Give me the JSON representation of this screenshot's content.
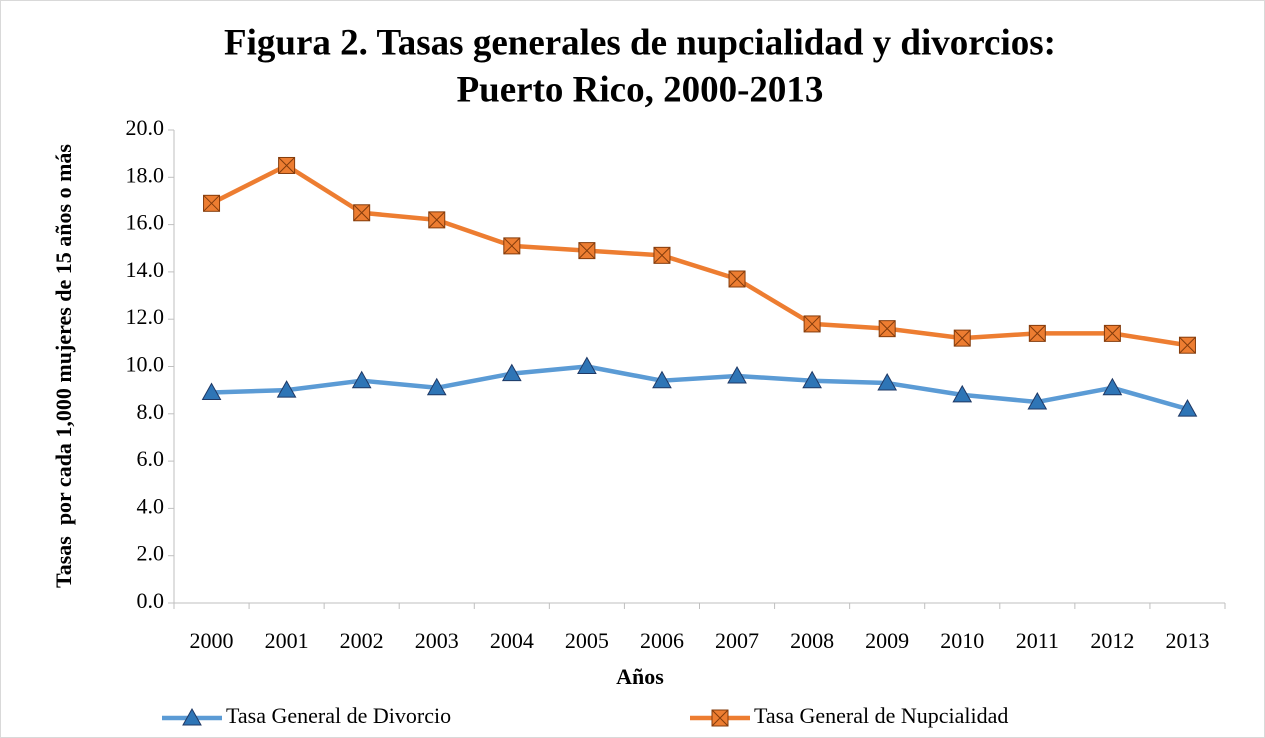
{
  "chart_data": {
    "type": "line",
    "title": [
      "Figura 2. Tasas generales de nupcialidad y divorcios:",
      "Puerto Rico, 2000-2013"
    ],
    "x_label": "Años",
    "y_label": "Tasas  por cada 1,000 mujeres de 15 años o más",
    "categories": [
      "2000",
      "2001",
      "2002",
      "2003",
      "2004",
      "2005",
      "2006",
      "2007",
      "2008",
      "2009",
      "2010",
      "2011",
      "2012",
      "2013"
    ],
    "series": [
      {
        "name": "Tasa General de Divorcio",
        "color": "#5b9bd5",
        "marker": "triangle",
        "values": [
          8.9,
          9.0,
          9.4,
          9.1,
          9.7,
          10.0,
          9.4,
          9.6,
          9.4,
          9.3,
          8.8,
          8.5,
          9.1,
          8.2
        ]
      },
      {
        "name": "Tasa General de Nupcialidad",
        "color": "#ed7d31",
        "marker": "square",
        "values": [
          16.9,
          18.5,
          16.5,
          16.2,
          15.1,
          14.9,
          14.7,
          13.7,
          11.8,
          11.6,
          11.2,
          11.4,
          11.4,
          10.9
        ]
      }
    ],
    "ylim": [
      0,
      20
    ],
    "yticks": [
      {
        "value": 0,
        "label": "0.0"
      },
      {
        "value": 2,
        "label": "2.0"
      },
      {
        "value": 4,
        "label": "4.0"
      },
      {
        "value": 6,
        "label": "6.0"
      },
      {
        "value": 8,
        "label": "8.0"
      },
      {
        "value": 10,
        "label": "10.0"
      },
      {
        "value": 12,
        "label": "12.0"
      },
      {
        "value": 14,
        "label": "14.0"
      },
      {
        "value": 16,
        "label": "16.0"
      },
      {
        "value": 18,
        "label": "18.0"
      },
      {
        "value": 20,
        "label": "20.0"
      }
    ],
    "grid": false,
    "legend": "bottom"
  }
}
